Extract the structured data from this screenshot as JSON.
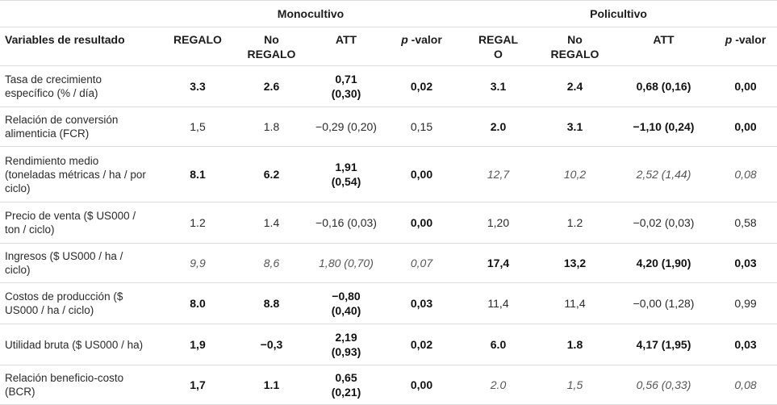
{
  "table": {
    "groups": {
      "mono": "Monocultivo",
      "poli": "Policultivo"
    },
    "header": {
      "variable": "Variables de resultado",
      "mono": {
        "regalo": "REGALO",
        "no_regalo": "No REGALO",
        "att": "ATT",
        "p": "p",
        "valor": "-valor"
      },
      "poli": {
        "regalo": "REGALO",
        "no_regalo": "No REGALO",
        "att": "ATT",
        "p": "p",
        "valor": "-valor"
      }
    },
    "rows": [
      {
        "label": "Tasa de crecimiento específico (% / día)",
        "cells": [
          {
            "v": "3.3",
            "b": true
          },
          {
            "v": "2.6",
            "b": true
          },
          {
            "v": "0,71 (0,30)",
            "b": true
          },
          {
            "v": "0,02",
            "b": true
          },
          {
            "v": "3.1",
            "b": true
          },
          {
            "v": "2.4",
            "b": true
          },
          {
            "v": "0,68 (0,16)",
            "b": true
          },
          {
            "v": "0,00",
            "b": true
          }
        ]
      },
      {
        "label": "Relación de conversión alimenticia (FCR)",
        "cells": [
          {
            "v": "1,5"
          },
          {
            "v": "1.8"
          },
          {
            "v": "−0,29 (0,20)"
          },
          {
            "v": "0,15"
          },
          {
            "v": "2.0",
            "b": true
          },
          {
            "v": "3.1",
            "b": true
          },
          {
            "v": "−1,10 (0,24)",
            "b": true
          },
          {
            "v": "0,00",
            "b": true
          }
        ]
      },
      {
        "label": "Rendimiento medio (toneladas métricas / ha / por ciclo)",
        "cells": [
          {
            "v": "8.1",
            "b": true
          },
          {
            "v": "6.2",
            "b": true
          },
          {
            "v": "1,91 (0,54)",
            "b": true
          },
          {
            "v": "0,00",
            "b": true
          },
          {
            "v": "12,7",
            "i": true
          },
          {
            "v": "10,2",
            "i": true
          },
          {
            "v": "2,52 (1,44)",
            "i": true
          },
          {
            "v": "0,08",
            "i": true
          }
        ]
      },
      {
        "label": "Precio de venta ($ US000 / ton / ciclo)",
        "cells": [
          {
            "v": "1.2"
          },
          {
            "v": "1.4"
          },
          {
            "v": "−0,16 (0,03)"
          },
          {
            "v": "0,00",
            "b": true
          },
          {
            "v": "1,20"
          },
          {
            "v": "1.2"
          },
          {
            "v": "−0,02 (0,03)"
          },
          {
            "v": "0,58"
          }
        ]
      },
      {
        "label": "Ingresos ($ US000 / ha / ciclo)",
        "cells": [
          {
            "v": "9,9",
            "i": true
          },
          {
            "v": "8,6",
            "i": true
          },
          {
            "v": "1,80 (0,70)",
            "i": true
          },
          {
            "v": "0,07",
            "i": true
          },
          {
            "v": "17,4",
            "b": true
          },
          {
            "v": "13,2",
            "b": true
          },
          {
            "v": "4,20 (1,90)",
            "b": true
          },
          {
            "v": "0,03",
            "b": true
          }
        ]
      },
      {
        "label": "Costos de producción ($ US000 / ha / ciclo)",
        "cells": [
          {
            "v": "8.0",
            "b": true
          },
          {
            "v": "8.8",
            "b": true
          },
          {
            "v": "−0,80 (0,40)",
            "b": true
          },
          {
            "v": "0,03",
            "b": true
          },
          {
            "v": "11,4"
          },
          {
            "v": "11,4"
          },
          {
            "v": "−0,00 (1,28)"
          },
          {
            "v": "0,99"
          }
        ]
      },
      {
        "label": "Utilidad bruta ($ US000 / ha)",
        "cells": [
          {
            "v": "1,9",
            "b": true
          },
          {
            "v": "−0,3",
            "b": true
          },
          {
            "v": "2,19 (0,93)",
            "b": true
          },
          {
            "v": "0,02",
            "b": true
          },
          {
            "v": "6.0",
            "b": true
          },
          {
            "v": "1.8",
            "b": true
          },
          {
            "v": "4,17 (1,95)",
            "b": true
          },
          {
            "v": "0,03",
            "b": true
          }
        ]
      },
      {
        "label": "Relación beneficio-costo (BCR)",
        "cells": [
          {
            "v": "1,7",
            "b": true
          },
          {
            "v": "1.1",
            "b": true
          },
          {
            "v": "0,65 (0,21)",
            "b": true
          },
          {
            "v": "0,00",
            "b": true
          },
          {
            "v": "2.0",
            "i": true
          },
          {
            "v": "1,5",
            "i": true
          },
          {
            "v": "0,56 (0,33)",
            "i": true
          },
          {
            "v": "0,08",
            "i": true
          }
        ]
      }
    ]
  }
}
